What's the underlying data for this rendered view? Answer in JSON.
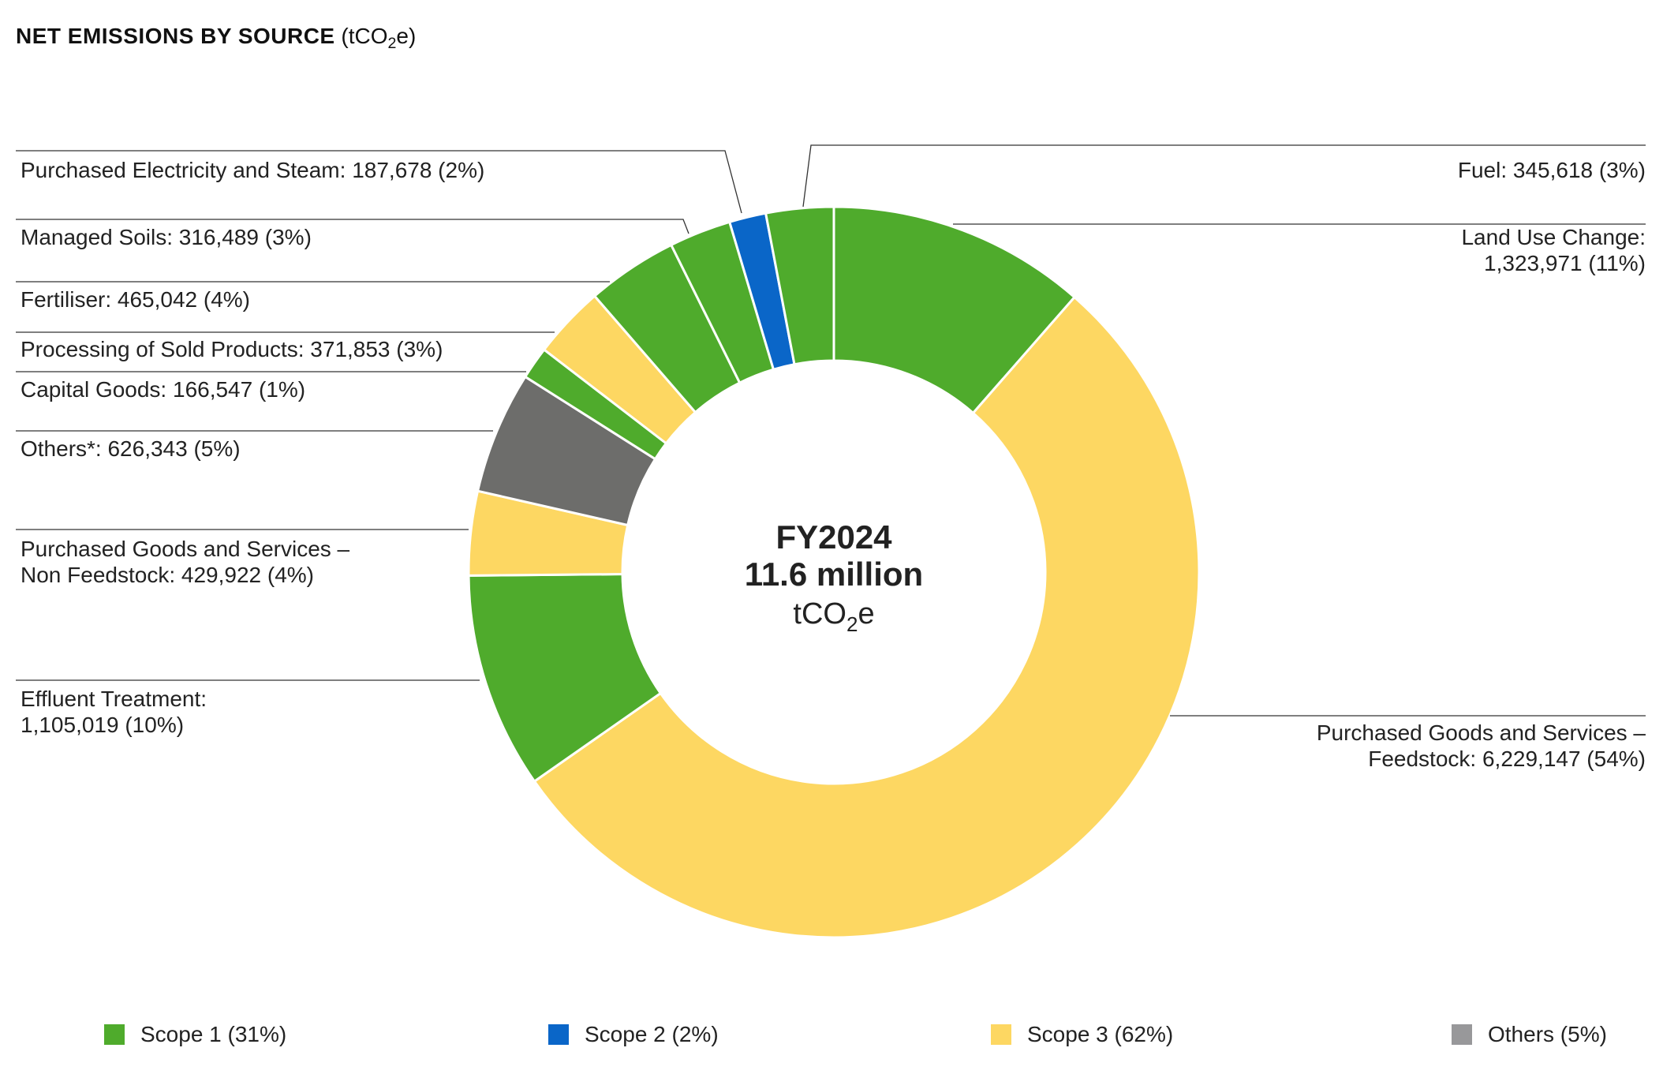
{
  "chart_data": {
    "type": "donut",
    "title": "NET EMISSIONS BY SOURCE",
    "title_unit_prefix": "(tCO",
    "title_unit_sub": "2",
    "title_unit_suffix": "e)",
    "center": {
      "year": "FY2024",
      "total": "11.6 million",
      "unit_prefix": "tCO",
      "unit_sub": "2",
      "unit_suffix": "e"
    },
    "slices": [
      {
        "label_lines": [
          "Land Use Change:",
          "1,323,971 (11%)"
        ],
        "value": 1323971,
        "scope": "Scope 1",
        "color": "#4fab2c"
      },
      {
        "label_lines": [
          "Purchased Goods and Services –",
          "Feedstock: 6,229,147 (54%)"
        ],
        "value": 6229147,
        "scope": "Scope 3",
        "color": "#fdd762"
      },
      {
        "label_lines": [
          "Effluent Treatment:",
          "1,105,019 (10%)"
        ],
        "value": 1105019,
        "scope": "Scope 1",
        "color": "#4fab2c"
      },
      {
        "label_lines": [
          "Purchased Goods and Services –",
          "Non Feedstock: 429,922 (4%)"
        ],
        "value": 429922,
        "scope": "Scope 3",
        "color": "#fdd762"
      },
      {
        "label_lines": [
          "Others*: 626,343 (5%)"
        ],
        "value": 626343,
        "scope": "Others",
        "color": "#6d6d6b"
      },
      {
        "label_lines": [
          "Capital Goods: 166,547 (1%)"
        ],
        "value": 166547,
        "scope": "Scope 1",
        "color": "#4fab2c"
      },
      {
        "label_lines": [
          "Processing of Sold Products: 371,853 (3%)"
        ],
        "value": 371853,
        "scope": "Scope 3",
        "color": "#fdd762"
      },
      {
        "label_lines": [
          "Fertiliser: 465,042 (4%)"
        ],
        "value": 465042,
        "scope": "Scope 1",
        "color": "#4fab2c"
      },
      {
        "label_lines": [
          "Managed Soils: 316,489 (3%)"
        ],
        "value": 316489,
        "scope": "Scope 1",
        "color": "#4fab2c"
      },
      {
        "label_lines": [
          "Purchased Electricity and Steam: 187,678 (2%)"
        ],
        "value": 187678,
        "scope": "Scope 2",
        "color": "#0a66c8"
      },
      {
        "label_lines": [
          "Fuel: 345,618 (3%)"
        ],
        "value": 345618,
        "scope": "Scope 1",
        "color": "#4fab2c"
      }
    ],
    "legend": [
      {
        "label": "Scope 1 (31%)",
        "color": "#4fab2c"
      },
      {
        "label": "Scope 2 (2%)",
        "color": "#0a66c8"
      },
      {
        "label": "Scope 3 (62%)",
        "color": "#fdd762"
      },
      {
        "label": "Others (5%)",
        "color": "#98989a"
      }
    ],
    "legend_placement": "bottom"
  }
}
